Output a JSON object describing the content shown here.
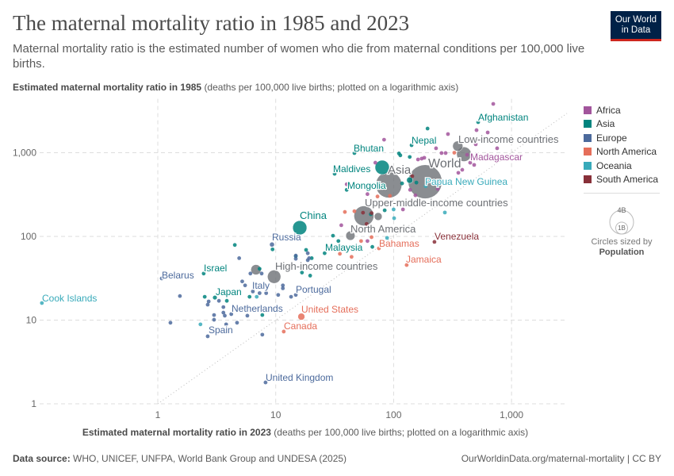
{
  "header": {
    "title": "The maternal mortality ratio in 1985 and 2023",
    "subtitle": "Maternal mortality ratio is the estimated number of women who die from maternal conditions per 100,000 live births.",
    "logo": [
      "Our World",
      "in Data"
    ]
  },
  "footer": {
    "source_label": "Data source:",
    "source": "WHO, UNICEF, UNFPA, World Bank Group and UNDESA (2025)",
    "link": "OurWorldinData.org/maternal-mortality | CC BY"
  },
  "legend": {
    "items": [
      {
        "label": "Africa",
        "color": "#a2559c"
      },
      {
        "label": "Asia",
        "color": "#00847e"
      },
      {
        "label": "Europe",
        "color": "#4c6a9c"
      },
      {
        "label": "North America",
        "color": "#e56e5a"
      },
      {
        "label": "Oceania",
        "color": "#38aaba"
      },
      {
        "label": "South America",
        "color": "#883039"
      }
    ],
    "size_big": "4B",
    "size_small": "1B",
    "size_caption": "Circles sized by",
    "size_variable": "Population"
  },
  "chart_data": {
    "type": "scatter",
    "title": "The maternal mortality ratio in 1985 and 2023",
    "xlabel": "Estimated maternal mortality ratio in 2023",
    "xlabel_note": "(deaths per 100,000 live births; plotted on a logarithmic axis)",
    "ylabel": "Estimated maternal mortality ratio in 1985",
    "ylabel_note": "(deaths per 100,000 live births; plotted on a logarithmic axis)",
    "xscale": "log",
    "yscale": "log",
    "xlim": [
      0.1,
      2950
    ],
    "ylim": [
      1,
      4400
    ],
    "xticks": [
      "1",
      "10",
      "100",
      "1,000"
    ],
    "xtick_values": [
      1,
      10,
      100,
      1000
    ],
    "yticks": [
      "1",
      "10",
      "100",
      "1,000"
    ],
    "ytick_values": [
      1,
      10,
      100,
      1000
    ],
    "grid": true,
    "reference_line": "y = x",
    "legend_position": "right",
    "aggregate_color": "#6d7075",
    "region_colors": {
      "Af": "#a2559c",
      "As": "#00847e",
      "Eu": "#4c6a9c",
      "NA": "#e56e5a",
      "Oc": "#38aaba",
      "SA": "#883039"
    },
    "labeled": [
      {
        "name": "Afghanistan",
        "region": "As",
        "x": 521,
        "y": 2320
      },
      {
        "name": "Nepal",
        "region": "As",
        "x": 142,
        "y": 1230
      },
      {
        "name": "Bhutan",
        "region": "As",
        "x": 46.5,
        "y": 990
      },
      {
        "name": "Maldives",
        "region": "As",
        "x": 31.6,
        "y": 560
      },
      {
        "name": "Mongolia",
        "region": "As",
        "x": 40,
        "y": 360
      },
      {
        "name": "Madagascar",
        "region": "Af",
        "x": 420,
        "y": 945
      },
      {
        "name": "Papua New Guinea",
        "region": "Oc",
        "x": 187,
        "y": 398
      },
      {
        "name": "Venezuela",
        "region": "SA",
        "x": 222,
        "y": 86
      },
      {
        "name": "Bahamas",
        "region": "NA",
        "x": 75,
        "y": 72
      },
      {
        "name": "Jamaica",
        "region": "NA",
        "x": 129,
        "y": 45.5
      },
      {
        "name": "Russia",
        "region": "Eu",
        "x": 9.3,
        "y": 80,
        "population_b": 0.14
      },
      {
        "name": "Malaysia",
        "region": "As",
        "x": 26,
        "y": 63
      },
      {
        "name": "Belarus",
        "region": "Eu",
        "x": 1.08,
        "y": 31.5
      },
      {
        "name": "Israel",
        "region": "As",
        "x": 2.45,
        "y": 36
      },
      {
        "name": "Japan",
        "region": "As",
        "x": 3.05,
        "y": 18.6,
        "population_b": 0.12
      },
      {
        "name": "Italy",
        "region": "Eu",
        "x": 6.4,
        "y": 22
      },
      {
        "name": "Portugal",
        "region": "Eu",
        "x": 14.8,
        "y": 20
      },
      {
        "name": "Netherlands",
        "region": "Eu",
        "x": 5.75,
        "y": 11.3
      },
      {
        "name": "Spain",
        "region": "Eu",
        "x": 2.65,
        "y": 6.4
      },
      {
        "name": "United States",
        "region": "NA",
        "x": 16.5,
        "y": 11,
        "population_b": 0.34
      },
      {
        "name": "Canada",
        "region": "NA",
        "x": 11.7,
        "y": 7.3
      },
      {
        "name": "Cook Islands",
        "region": "Oc",
        "x": 0.104,
        "y": 16
      },
      {
        "name": "United Kingdom",
        "region": "Eu",
        "x": 8.2,
        "y": 1.8
      },
      {
        "name": "China",
        "region": "As",
        "x": 16,
        "y": 127,
        "population_b": 1.41
      },
      {
        "name": "World",
        "region": "agg",
        "x": 185,
        "y": 450,
        "population_b": 8.1
      },
      {
        "name": "Asia",
        "region": "agg",
        "x": 91,
        "y": 413,
        "population_b": 4.8
      },
      {
        "name": "Low-income countries",
        "region": "agg",
        "x": 350,
        "y": 1200,
        "population_b": 0.74
      },
      {
        "name": "Upper-middle-income countries",
        "region": "agg",
        "x": 56,
        "y": 176,
        "population_b": 2.8
      },
      {
        "name": "North America",
        "region": "agg",
        "x": 43,
        "y": 102,
        "population_b": 0.6
      },
      {
        "name": "High-income countries",
        "region": "agg",
        "x": 9.7,
        "y": 33,
        "population_b": 1.25
      }
    ],
    "unlabeled": [
      {
        "region": "agg",
        "x": 395,
        "y": 960,
        "population_b": 1.5
      },
      {
        "region": "agg",
        "x": 6.8,
        "y": 40,
        "population_b": 0.74
      },
      {
        "region": "agg",
        "x": 74,
        "y": 173,
        "population_b": 0.43
      },
      {
        "region": "As",
        "x": 80,
        "y": 668,
        "population_b": 1.44
      },
      {
        "region": "As",
        "x": 137,
        "y": 470,
        "population_b": 0.28
      },
      {
        "region": "Af",
        "x": 700,
        "y": 3830
      },
      {
        "region": "Af",
        "x": 505,
        "y": 1860
      },
      {
        "region": "Af",
        "x": 628,
        "y": 1745
      },
      {
        "region": "Af",
        "x": 289,
        "y": 1670
      },
      {
        "region": "Af",
        "x": 755,
        "y": 1130
      },
      {
        "region": "Af",
        "x": 497,
        "y": 1260
      },
      {
        "region": "Af",
        "x": 229,
        "y": 1130
      },
      {
        "region": "Af",
        "x": 255,
        "y": 990
      },
      {
        "region": "Af",
        "x": 276,
        "y": 990
      },
      {
        "region": "Af",
        "x": 161,
        "y": 830
      },
      {
        "region": "Af",
        "x": 173,
        "y": 850
      },
      {
        "region": "Af",
        "x": 182,
        "y": 870
      },
      {
        "region": "Af",
        "x": 83,
        "y": 1430
      },
      {
        "region": "Af",
        "x": 70,
        "y": 760
      },
      {
        "region": "Af",
        "x": 40,
        "y": 420
      },
      {
        "region": "Af",
        "x": 354,
        "y": 575
      },
      {
        "region": "Af",
        "x": 382,
        "y": 625
      },
      {
        "region": "Af",
        "x": 446,
        "y": 760
      },
      {
        "region": "Af",
        "x": 482,
        "y": 715
      },
      {
        "region": "Af",
        "x": 138,
        "y": 360
      },
      {
        "region": "Af",
        "x": 153,
        "y": 310
      },
      {
        "region": "Af",
        "x": 237,
        "y": 370
      },
      {
        "region": "Af",
        "x": 60,
        "y": 320
      },
      {
        "region": "Af",
        "x": 36,
        "y": 136
      },
      {
        "region": "Af",
        "x": 120,
        "y": 210
      },
      {
        "region": "Af",
        "x": 60,
        "y": 88
      },
      {
        "region": "As",
        "x": 194,
        "y": 1945
      },
      {
        "region": "As",
        "x": 111,
        "y": 980
      },
      {
        "region": "As",
        "x": 114,
        "y": 930
      },
      {
        "region": "As",
        "x": 137,
        "y": 890
      },
      {
        "region": "As",
        "x": 118,
        "y": 430
      },
      {
        "region": "As",
        "x": 156,
        "y": 440
      },
      {
        "region": "As",
        "x": 84,
        "y": 205
      },
      {
        "region": "As",
        "x": 64,
        "y": 184
      },
      {
        "region": "As",
        "x": 66,
        "y": 75
      },
      {
        "region": "As",
        "x": 30.6,
        "y": 102
      },
      {
        "region": "As",
        "x": 34,
        "y": 88
      },
      {
        "region": "As",
        "x": 4.5,
        "y": 79
      },
      {
        "region": "As",
        "x": 2.5,
        "y": 19
      },
      {
        "region": "As",
        "x": 3.85,
        "y": 17
      },
      {
        "region": "As",
        "x": 6.0,
        "y": 19
      },
      {
        "region": "As",
        "x": 7.3,
        "y": 41
      },
      {
        "region": "As",
        "x": 9.4,
        "y": 70
      },
      {
        "region": "As",
        "x": 14.8,
        "y": 58
      },
      {
        "region": "As",
        "x": 16.7,
        "y": 37
      },
      {
        "region": "As",
        "x": 19.6,
        "y": 34
      },
      {
        "region": "As",
        "x": 18.1,
        "y": 69
      },
      {
        "region": "As",
        "x": 20.2,
        "y": 55
      },
      {
        "region": "As",
        "x": 7.7,
        "y": 11.5
      },
      {
        "region": "Oc",
        "x": 272,
        "y": 193
      },
      {
        "region": "Oc",
        "x": 100,
        "y": 210
      },
      {
        "region": "Oc",
        "x": 101,
        "y": 165
      },
      {
        "region": "Oc",
        "x": 88,
        "y": 96
      },
      {
        "region": "Oc",
        "x": 2.3,
        "y": 8.9
      },
      {
        "region": "Oc",
        "x": 6.9,
        "y": 19
      },
      {
        "region": "SA",
        "x": 55,
        "y": 192
      },
      {
        "region": "SA",
        "x": 65,
        "y": 190
      },
      {
        "region": "SA",
        "x": 59,
        "y": 141
      },
      {
        "region": "SA",
        "x": 144,
        "y": 525
      },
      {
        "region": "NA",
        "x": 327,
        "y": 1000
      },
      {
        "region": "NA",
        "x": 73,
        "y": 300
      },
      {
        "region": "NA",
        "x": 93,
        "y": 305
      },
      {
        "region": "NA",
        "x": 38.6,
        "y": 196
      },
      {
        "region": "NA",
        "x": 46.5,
        "y": 200
      },
      {
        "region": "NA",
        "x": 65,
        "y": 98
      },
      {
        "region": "NA",
        "x": 53,
        "y": 88
      },
      {
        "region": "NA",
        "x": 35,
        "y": 62
      },
      {
        "region": "NA",
        "x": 44,
        "y": 57
      },
      {
        "region": "Eu",
        "x": 1.54,
        "y": 19.4
      },
      {
        "region": "Eu",
        "x": 1.28,
        "y": 9.3
      },
      {
        "region": "Eu",
        "x": 2.65,
        "y": 15.3
      },
      {
        "region": "Eu",
        "x": 2.7,
        "y": 16.7
      },
      {
        "region": "Eu",
        "x": 3.3,
        "y": 17
      },
      {
        "region": "Eu",
        "x": 3.0,
        "y": 11.5
      },
      {
        "region": "Eu",
        "x": 3.0,
        "y": 10.1
      },
      {
        "region": "Eu",
        "x": 3.6,
        "y": 14.3
      },
      {
        "region": "Eu",
        "x": 3.6,
        "y": 12.3
      },
      {
        "region": "Eu",
        "x": 3.7,
        "y": 11.3
      },
      {
        "region": "Eu",
        "x": 4.2,
        "y": 11.8
      },
      {
        "region": "Eu",
        "x": 3.8,
        "y": 8.9
      },
      {
        "region": "Eu",
        "x": 4.7,
        "y": 9.3
      },
      {
        "region": "Eu",
        "x": 4.9,
        "y": 55
      },
      {
        "region": "Eu",
        "x": 5.2,
        "y": 29
      },
      {
        "region": "Eu",
        "x": 5.5,
        "y": 26
      },
      {
        "region": "Eu",
        "x": 6.1,
        "y": 36
      },
      {
        "region": "Eu",
        "x": 7.6,
        "y": 36
      },
      {
        "region": "Eu",
        "x": 7.3,
        "y": 21
      },
      {
        "region": "Eu",
        "x": 8.3,
        "y": 21
      },
      {
        "region": "Eu",
        "x": 10.5,
        "y": 20
      },
      {
        "region": "Eu",
        "x": 11.5,
        "y": 24
      },
      {
        "region": "Eu",
        "x": 11.5,
        "y": 26
      },
      {
        "region": "Eu",
        "x": 13.5,
        "y": 19
      },
      {
        "region": "Eu",
        "x": 18.7,
        "y": 63
      },
      {
        "region": "Eu",
        "x": 19.2,
        "y": 55
      },
      {
        "region": "Eu",
        "x": 18.7,
        "y": 52
      },
      {
        "region": "Eu",
        "x": 14.8,
        "y": 54
      },
      {
        "region": "Eu",
        "x": 14.8,
        "y": 59
      },
      {
        "region": "Eu",
        "x": 7.7,
        "y": 6.7
      }
    ]
  }
}
